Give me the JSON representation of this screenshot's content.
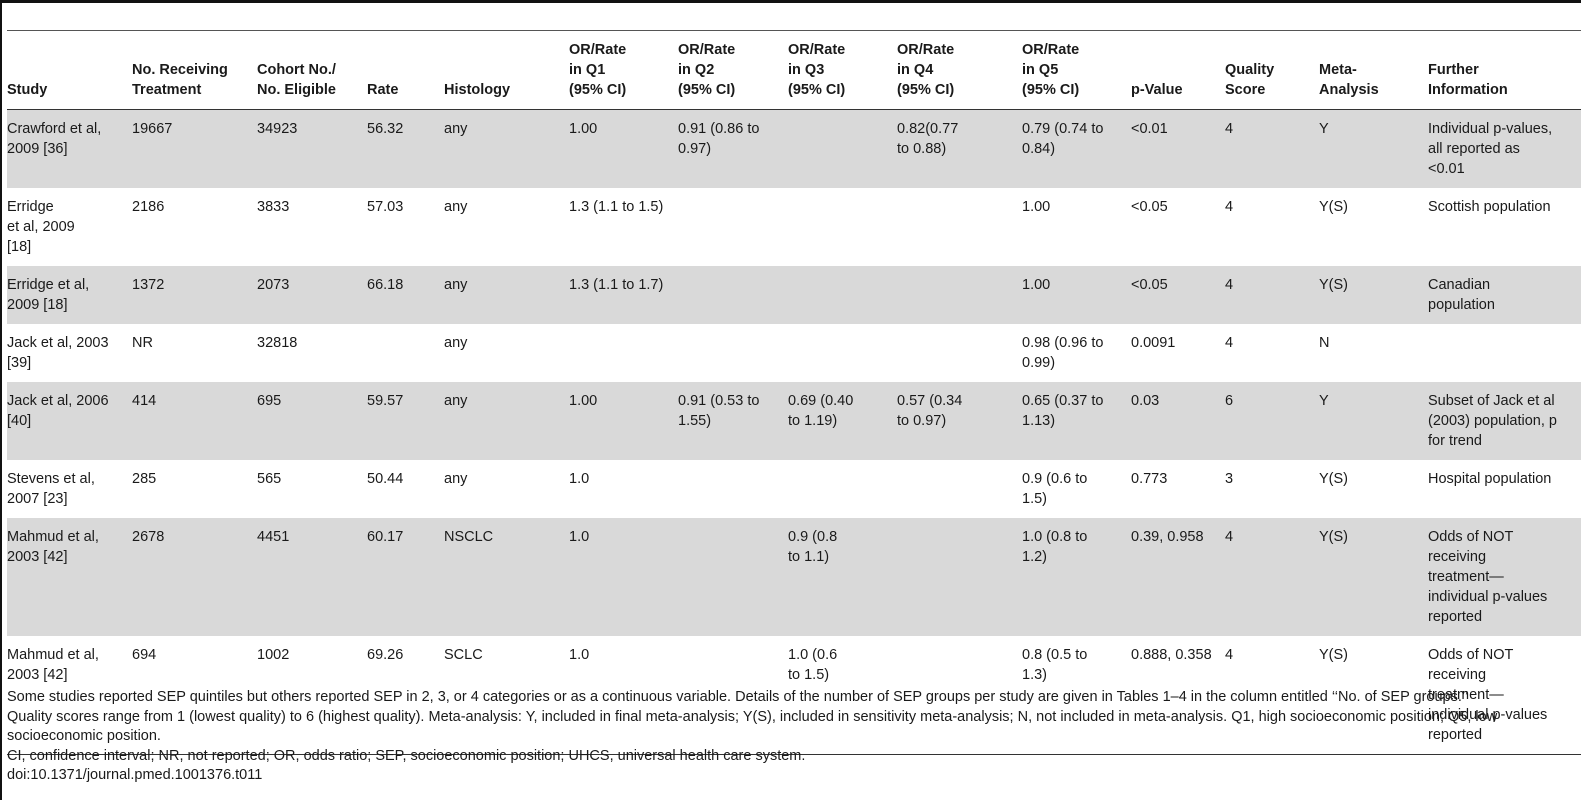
{
  "columns": [
    "Study",
    "No. Receiving\nTreatment",
    "Cohort No./\nNo. Eligible",
    "Rate",
    "Histology",
    "OR/Rate\nin Q1\n(95% CI)",
    "OR/Rate\nin Q2\n(95% CI)",
    "OR/Rate\nin Q3\n(95% CI)",
    "OR/Rate\nin Q4\n(95% CI)",
    "OR/Rate\nin Q5\n(95% CI)",
    "p-Value",
    "Quality\nScore",
    "Meta-\nAnalysis",
    "Further\nInformation"
  ],
  "rows": [
    [
      "Crawford et al,\n2009 [36]",
      "19667",
      "34923",
      "56.32",
      "any",
      "1.00",
      "0.91 (0.86 to\n0.97)",
      "",
      "0.82(0.77\nto 0.88)",
      "0.79 (0.74 to\n0.84)",
      "<0.01",
      "4",
      "Y",
      "Individual p-values,\nall reported as\n<0.01"
    ],
    [
      "Erridge\net al, 2009\n[18]",
      "2186",
      "3833",
      "57.03",
      "any",
      "1.3 (1.1 to 1.5)",
      "",
      "",
      "",
      "1.00",
      "<0.05",
      "4",
      "Y(S)",
      "Scottish population"
    ],
    [
      "Erridge et al,\n2009 [18]",
      "1372",
      "2073",
      "66.18",
      "any",
      "1.3 (1.1 to 1.7)",
      "",
      "",
      "",
      "1.00",
      "<0.05",
      "4",
      "Y(S)",
      "Canadian\npopulation"
    ],
    [
      "Jack et al, 2003\n[39]",
      "NR",
      "32818",
      "",
      "any",
      "",
      "",
      "",
      "",
      "0.98 (0.96 to\n0.99)",
      "0.0091",
      "4",
      "N",
      ""
    ],
    [
      "Jack et al, 2006\n[40]",
      "414",
      "695",
      "59.57",
      "any",
      "1.00",
      "0.91 (0.53 to\n1.55)",
      "0.69 (0.40\nto 1.19)",
      "0.57 (0.34\nto 0.97)",
      "0.65 (0.37 to\n1.13)",
      "0.03",
      "6",
      "Y",
      "Subset of Jack et al\n(2003) population, p\nfor trend"
    ],
    [
      "Stevens et al,\n2007 [23]",
      "285",
      "565",
      "50.44",
      "any",
      "1.0",
      "",
      "",
      "",
      "0.9 (0.6 to\n1.5)",
      "0.773",
      "3",
      "Y(S)",
      "Hospital population"
    ],
    [
      "Mahmud et al,\n2003 [42]",
      "2678",
      "4451",
      "60.17",
      "NSCLC",
      "1.0",
      "",
      "0.9 (0.8\nto 1.1)",
      "",
      "1.0 (0.8 to\n1.2)",
      "0.39, 0.958",
      "4",
      "Y(S)",
      "Odds of NOT\nreceiving\ntreatment—\nindividual p-values\nreported"
    ],
    [
      "Mahmud et al,\n2003 [42]",
      "694",
      "1002",
      "69.26",
      "SCLC",
      "1.0",
      "",
      "1.0 (0.6\nto 1.5)",
      "",
      "0.8 (0.5 to\n1.3)",
      "0.888, 0.358",
      "4",
      "Y(S)",
      "Odds of NOT\nreceiving\ntreatment—\nindividual p-values\nreported"
    ]
  ],
  "footnotes": [
    "Some studies reported SEP quintiles but others reported SEP in 2, 3, or 4 categories or as a continuous variable. Details of the number of SEP groups per study are given in Tables 1–4 in the column entitled ‘‘No. of SEP groups.’’",
    "Quality scores range from 1 (lowest quality) to 6 (highest quality). Meta-analysis: Y, included in final meta-analysis; Y(S), included in sensitivity meta-analysis; N, not included in meta-analysis. Q1, high socioeconomic position; Q5, low socioeconomic position.",
    "CI, confidence interval; NR, not reported; OR, odds ratio; SEP, socioeconomic position; UHCS, universal health care system.",
    "doi:10.1371/journal.pmed.1001376.t011"
  ]
}
